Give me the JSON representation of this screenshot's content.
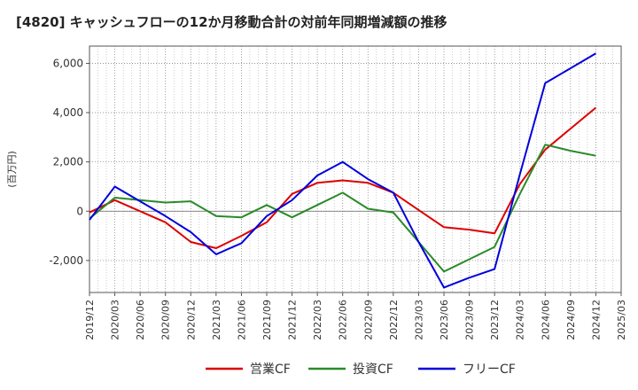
{
  "chart_data": {
    "type": "line",
    "title": "[4820]  キャッシュフローの12か月移動合計の対前年同期増減額の推移",
    "ylabel": "(百万円)",
    "xlabel": "",
    "ylim": [
      -3300,
      6700
    ],
    "yticks": [
      -2000,
      0,
      2000,
      4000,
      6000
    ],
    "ytick_labels": [
      "-2,000",
      "0",
      "2,000",
      "4,000",
      "6,000"
    ],
    "x_categories": [
      "2019/12",
      "2020/03",
      "2020/06",
      "2020/09",
      "2020/12",
      "2021/03",
      "2021/06",
      "2021/09",
      "2021/12",
      "2022/03",
      "2022/06",
      "2022/09",
      "2022/12",
      "2023/03",
      "2023/06",
      "2023/09",
      "2023/12",
      "2024/03",
      "2024/06",
      "2024/09",
      "2024/12",
      "2025/03"
    ],
    "grid": true,
    "legend_position": "bottom",
    "series": [
      {
        "name": "営業CF",
        "color": "#dd0000",
        "values": [
          -50,
          450,
          0,
          -450,
          -1250,
          -1500,
          -1000,
          -450,
          700,
          1150,
          1250,
          1150,
          750,
          50,
          -650,
          -750,
          -900,
          1100,
          2500,
          3350,
          4200,
          null
        ]
      },
      {
        "name": "投資CF",
        "color": "#2a8a2a",
        "values": [
          -300,
          550,
          450,
          350,
          400,
          -200,
          -250,
          250,
          -250,
          250,
          750,
          100,
          -50,
          -1250,
          -2450,
          -1950,
          -1450,
          700,
          2700,
          2450,
          2250,
          null
        ]
      },
      {
        "name": "フリーCF",
        "color": "#0000dd",
        "values": [
          -350,
          1000,
          400,
          -200,
          -850,
          -1750,
          -1300,
          -200,
          450,
          1450,
          2000,
          1300,
          750,
          -1250,
          -3100,
          -2700,
          -2350,
          1500,
          5200,
          5800,
          6400,
          null
        ]
      }
    ]
  }
}
